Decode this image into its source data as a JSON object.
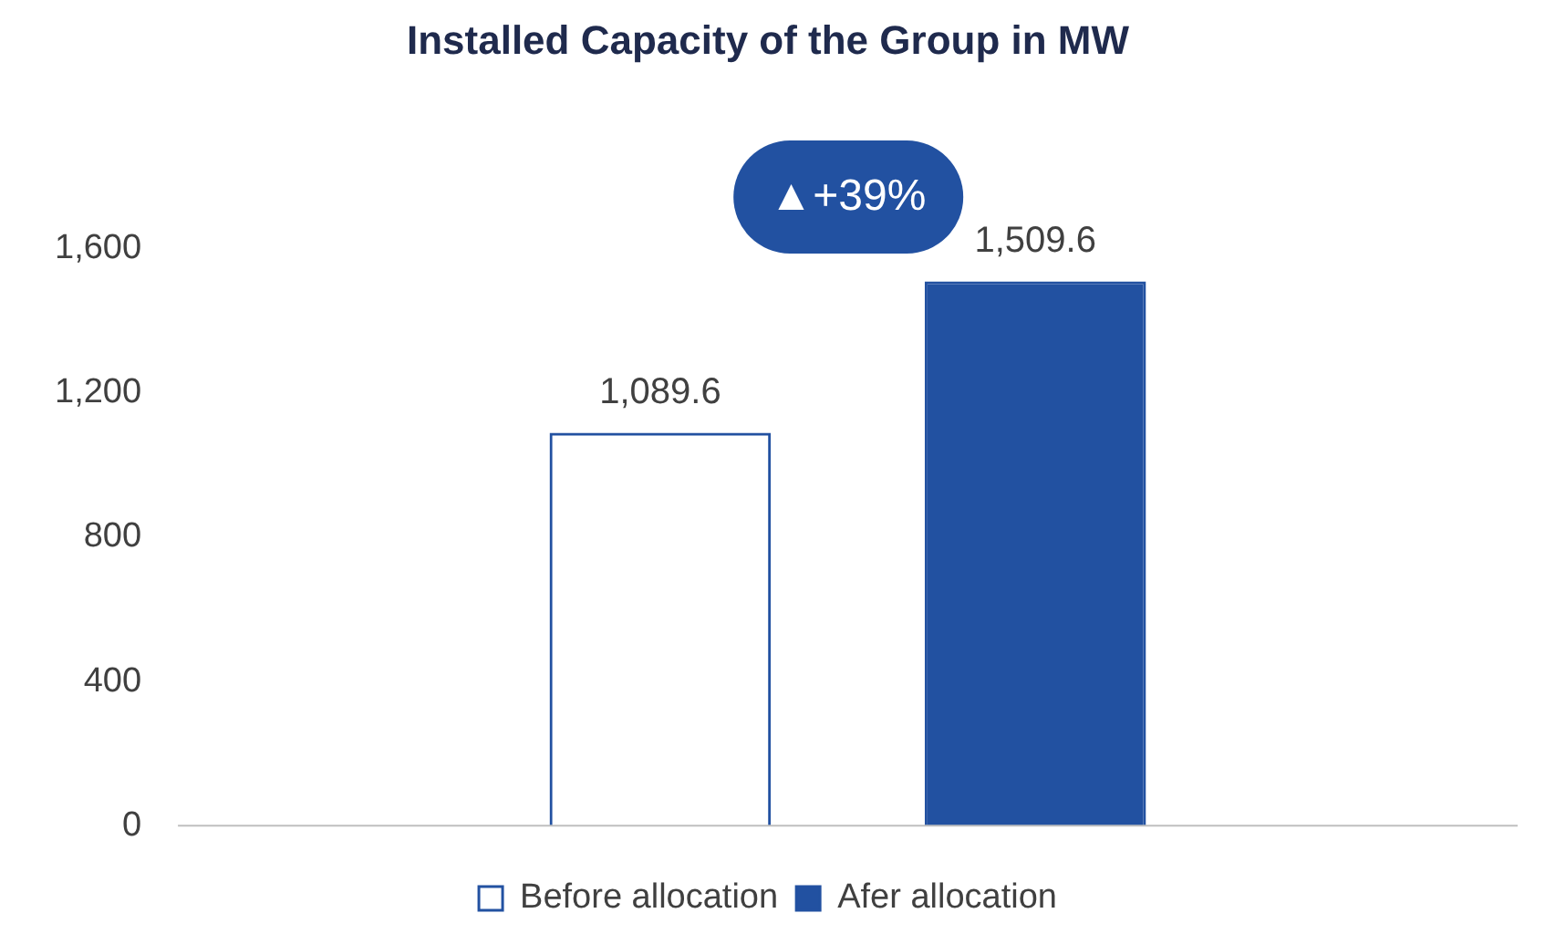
{
  "chart_data": {
    "type": "bar",
    "title": "Installed Capacity of the Group in MW",
    "categories": [
      null
    ],
    "series": [
      {
        "name": "Before allocation",
        "color": "#2251a1",
        "values": [
          1089.6
        ],
        "value_labels": [
          "1,089.6"
        ]
      },
      {
        "name": "Afer allocation",
        "color": "#2251a1",
        "values": [
          1509.6
        ],
        "value_labels": [
          "1,509.6"
        ]
      }
    ],
    "ylim": [
      0,
      1600
    ],
    "yticks": [
      0,
      {
        "value": 400,
        "label": "400"
      },
      {
        "value": 800,
        "label": "800"
      },
      {
        "value": 1200,
        "label": "1,200"
      },
      {
        "value": 1600,
        "label": "1,600"
      }
    ],
    "grid": false,
    "legend": "bottom",
    "annotations": [
      "▲+39%"
    ]
  }
}
